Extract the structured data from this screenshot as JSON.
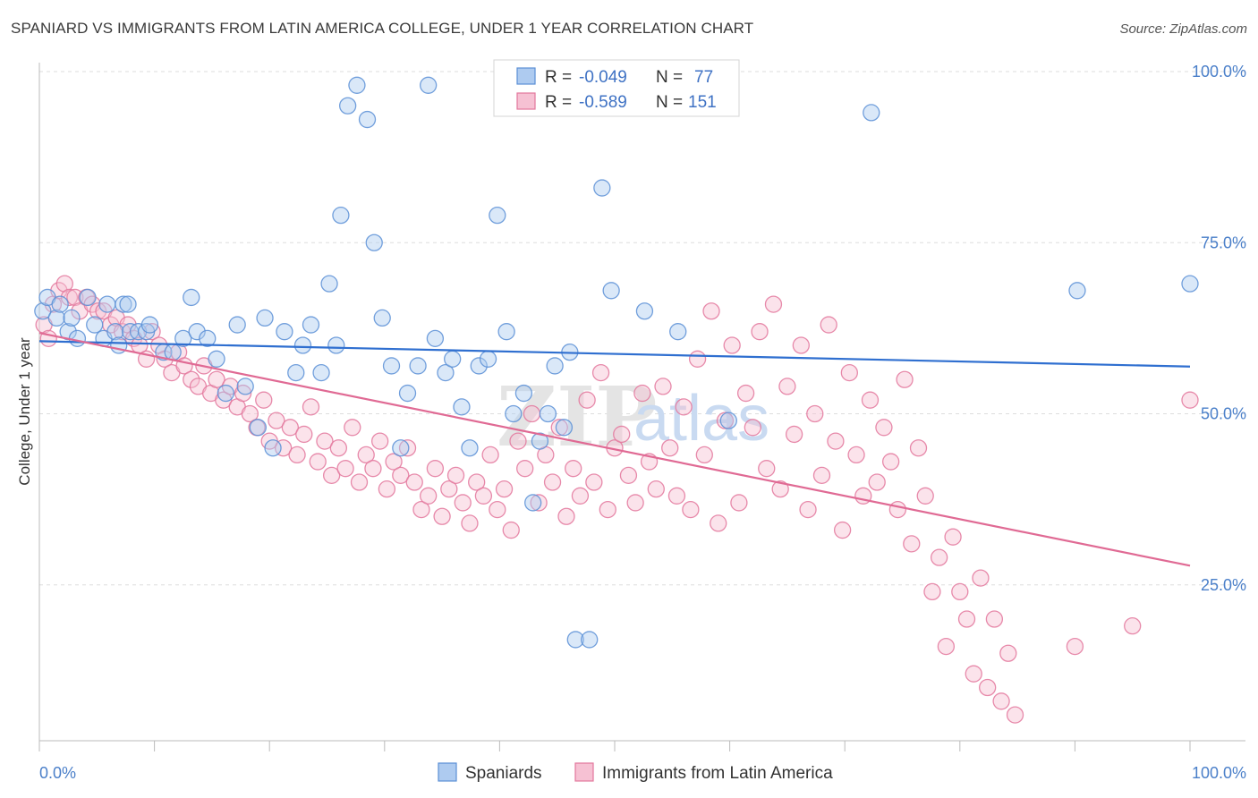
{
  "header": {
    "title": "SPANIARD VS IMMIGRANTS FROM LATIN AMERICA COLLEGE, UNDER 1 YEAR CORRELATION CHART",
    "source": "Source: ZipAtlas.com"
  },
  "watermark": {
    "zip": "ZIP",
    "atlas": "atlas"
  },
  "legend": {
    "r_label": "R =",
    "n_label": "N =",
    "rows": [
      {
        "r": "-0.049",
        "n": "77",
        "color": "#5b8fd6",
        "fill": "#aecbf0"
      },
      {
        "r": "-0.589",
        "n": "151",
        "color": "#e3779c",
        "fill": "#f6c1d3"
      }
    ]
  },
  "bottom_legend": [
    {
      "label": "Spaniards"
    },
    {
      "label": "Immigrants from Latin America"
    }
  ],
  "chart_data": {
    "type": "scatter",
    "ylabel": "College, Under 1 year",
    "xlim": [
      0,
      100
    ],
    "ylim": [
      0,
      100
    ],
    "x_tick_labels": [
      {
        "value": 0,
        "label": "0.0%"
      },
      {
        "value": 100,
        "label": "100.0%"
      }
    ],
    "y_tick_labels": [
      {
        "value": 25,
        "label": "25.0%"
      },
      {
        "value": 50,
        "label": "50.0%"
      },
      {
        "value": 75,
        "label": "75.0%"
      },
      {
        "value": 100,
        "label": "100.0%"
      }
    ],
    "grid": true,
    "legend_position": "top-center",
    "colors": {
      "spaniards": "#5b8fd6",
      "spaniards_fill": "#aecbf0",
      "immigrants": "#e3779c",
      "immigrants_fill": "#f6c1d3",
      "trend_spaniards": "#2f6fd0",
      "trend_immigrants": "#e06a94",
      "grid": "#dddddd"
    },
    "series": [
      {
        "name": "Spaniards",
        "trend": {
          "x": [
            0,
            100
          ],
          "y": [
            60.6,
            56.9
          ]
        },
        "points": [
          [
            0.3,
            65
          ],
          [
            0.7,
            67
          ],
          [
            1.5,
            64
          ],
          [
            1.8,
            66
          ],
          [
            2.5,
            62
          ],
          [
            2.8,
            64
          ],
          [
            3.3,
            61
          ],
          [
            4.2,
            67
          ],
          [
            4.8,
            63
          ],
          [
            5.6,
            61
          ],
          [
            5.9,
            66
          ],
          [
            6.6,
            62
          ],
          [
            6.9,
            60
          ],
          [
            7.3,
            66
          ],
          [
            7.7,
            66
          ],
          [
            7.9,
            62
          ],
          [
            8.6,
            62
          ],
          [
            9.3,
            62
          ],
          [
            9.6,
            63
          ],
          [
            10.8,
            59
          ],
          [
            11.6,
            59
          ],
          [
            12.5,
            61
          ],
          [
            13.2,
            67
          ],
          [
            13.7,
            62
          ],
          [
            14.6,
            61
          ],
          [
            15.4,
            58
          ],
          [
            16.2,
            53
          ],
          [
            17.2,
            63
          ],
          [
            17.9,
            54
          ],
          [
            19.0,
            48
          ],
          [
            19.6,
            64
          ],
          [
            20.3,
            45
          ],
          [
            21.3,
            62
          ],
          [
            22.3,
            56
          ],
          [
            22.9,
            60
          ],
          [
            23.6,
            63
          ],
          [
            24.5,
            56
          ],
          [
            25.2,
            69
          ],
          [
            25.8,
            60
          ],
          [
            26.2,
            79
          ],
          [
            26.8,
            95
          ],
          [
            27.6,
            98
          ],
          [
            28.5,
            93
          ],
          [
            29.1,
            75
          ],
          [
            29.8,
            64
          ],
          [
            30.6,
            57
          ],
          [
            31.4,
            45
          ],
          [
            32.0,
            53
          ],
          [
            32.9,
            57
          ],
          [
            33.8,
            98
          ],
          [
            34.4,
            61
          ],
          [
            35.3,
            56
          ],
          [
            35.9,
            58
          ],
          [
            36.7,
            51
          ],
          [
            37.4,
            45
          ],
          [
            38.2,
            57
          ],
          [
            39.0,
            58
          ],
          [
            39.8,
            79
          ],
          [
            40.6,
            62
          ],
          [
            41.2,
            50
          ],
          [
            42.1,
            53
          ],
          [
            42.9,
            37
          ],
          [
            43.5,
            46
          ],
          [
            44.2,
            50
          ],
          [
            44.8,
            57
          ],
          [
            45.6,
            48
          ],
          [
            46.1,
            59
          ],
          [
            46.6,
            17
          ],
          [
            47.8,
            17
          ],
          [
            48.9,
            83
          ],
          [
            49.7,
            68
          ],
          [
            52.6,
            65
          ],
          [
            55.5,
            62
          ],
          [
            59.9,
            49
          ],
          [
            72.3,
            94
          ],
          [
            90.2,
            68
          ],
          [
            100,
            69
          ]
        ]
      },
      {
        "name": "Immigrants from Latin America",
        "trend": {
          "x": [
            0,
            100
          ],
          "y": [
            61.8,
            27.8
          ]
        },
        "points": [
          [
            0.4,
            63
          ],
          [
            0.8,
            61
          ],
          [
            1.2,
            66
          ],
          [
            1.7,
            68
          ],
          [
            2.2,
            69
          ],
          [
            2.6,
            67
          ],
          [
            3.1,
            67
          ],
          [
            3.5,
            65
          ],
          [
            4.1,
            67
          ],
          [
            4.6,
            66
          ],
          [
            5.1,
            65
          ],
          [
            5.6,
            65
          ],
          [
            6.2,
            63
          ],
          [
            6.7,
            64
          ],
          [
            7.2,
            62
          ],
          [
            7.7,
            63
          ],
          [
            8.2,
            61
          ],
          [
            8.7,
            60
          ],
          [
            9.3,
            58
          ],
          [
            9.8,
            62
          ],
          [
            10.4,
            60
          ],
          [
            10.9,
            58
          ],
          [
            11.5,
            56
          ],
          [
            12.1,
            59
          ],
          [
            12.6,
            57
          ],
          [
            13.2,
            55
          ],
          [
            13.8,
            54
          ],
          [
            14.3,
            57
          ],
          [
            14.9,
            53
          ],
          [
            15.4,
            55
          ],
          [
            16.0,
            52
          ],
          [
            16.6,
            54
          ],
          [
            17.2,
            51
          ],
          [
            17.7,
            53
          ],
          [
            18.3,
            50
          ],
          [
            18.9,
            48
          ],
          [
            19.5,
            52
          ],
          [
            20.0,
            46
          ],
          [
            20.6,
            49
          ],
          [
            21.2,
            45
          ],
          [
            21.8,
            48
          ],
          [
            22.4,
            44
          ],
          [
            23.0,
            47
          ],
          [
            23.6,
            51
          ],
          [
            24.2,
            43
          ],
          [
            24.8,
            46
          ],
          [
            25.4,
            41
          ],
          [
            26.0,
            45
          ],
          [
            26.6,
            42
          ],
          [
            27.2,
            48
          ],
          [
            27.8,
            40
          ],
          [
            28.4,
            44
          ],
          [
            29.0,
            42
          ],
          [
            29.6,
            46
          ],
          [
            30.2,
            39
          ],
          [
            30.8,
            43
          ],
          [
            31.4,
            41
          ],
          [
            32.0,
            45
          ],
          [
            32.6,
            40
          ],
          [
            33.2,
            36
          ],
          [
            33.8,
            38
          ],
          [
            34.4,
            42
          ],
          [
            35.0,
            35
          ],
          [
            35.6,
            39
          ],
          [
            36.2,
            41
          ],
          [
            36.8,
            37
          ],
          [
            37.4,
            34
          ],
          [
            38.0,
            40
          ],
          [
            38.6,
            38
          ],
          [
            39.2,
            44
          ],
          [
            39.8,
            36
          ],
          [
            40.4,
            39
          ],
          [
            41.0,
            33
          ],
          [
            41.6,
            46
          ],
          [
            42.2,
            42
          ],
          [
            42.8,
            50
          ],
          [
            43.4,
            37
          ],
          [
            44.0,
            44
          ],
          [
            44.6,
            40
          ],
          [
            45.2,
            48
          ],
          [
            45.8,
            35
          ],
          [
            46.4,
            42
          ],
          [
            47.0,
            38
          ],
          [
            47.6,
            52
          ],
          [
            48.2,
            40
          ],
          [
            48.8,
            56
          ],
          [
            49.4,
            36
          ],
          [
            50.0,
            45
          ],
          [
            50.6,
            47
          ],
          [
            51.2,
            41
          ],
          [
            51.8,
            37
          ],
          [
            52.4,
            53
          ],
          [
            53.0,
            43
          ],
          [
            53.6,
            39
          ],
          [
            54.2,
            54
          ],
          [
            54.8,
            45
          ],
          [
            55.4,
            38
          ],
          [
            56.0,
            51
          ],
          [
            56.6,
            36
          ],
          [
            57.2,
            58
          ],
          [
            57.8,
            44
          ],
          [
            58.4,
            65
          ],
          [
            59.0,
            34
          ],
          [
            59.6,
            49
          ],
          [
            60.2,
            60
          ],
          [
            60.8,
            37
          ],
          [
            61.4,
            53
          ],
          [
            62.0,
            48
          ],
          [
            62.6,
            62
          ],
          [
            63.2,
            42
          ],
          [
            63.8,
            66
          ],
          [
            64.4,
            39
          ],
          [
            65.0,
            54
          ],
          [
            65.6,
            47
          ],
          [
            66.2,
            60
          ],
          [
            66.8,
            36
          ],
          [
            67.4,
            50
          ],
          [
            68.0,
            41
          ],
          [
            68.6,
            63
          ],
          [
            69.2,
            46
          ],
          [
            69.8,
            33
          ],
          [
            70.4,
            56
          ],
          [
            71.0,
            44
          ],
          [
            71.6,
            38
          ],
          [
            72.2,
            52
          ],
          [
            72.8,
            40
          ],
          [
            73.4,
            48
          ],
          [
            74.0,
            43
          ],
          [
            74.6,
            36
          ],
          [
            75.2,
            55
          ],
          [
            75.8,
            31
          ],
          [
            76.4,
            45
          ],
          [
            77.0,
            38
          ],
          [
            77.6,
            24
          ],
          [
            78.2,
            29
          ],
          [
            78.8,
            16
          ],
          [
            79.4,
            32
          ],
          [
            80.0,
            24
          ],
          [
            80.6,
            20
          ],
          [
            81.2,
            12
          ],
          [
            81.8,
            26
          ],
          [
            82.4,
            10
          ],
          [
            83.0,
            20
          ],
          [
            83.6,
            8
          ],
          [
            84.2,
            15
          ],
          [
            84.8,
            6
          ],
          [
            90.0,
            16
          ],
          [
            95.0,
            19
          ],
          [
            100,
            52
          ]
        ]
      }
    ]
  }
}
